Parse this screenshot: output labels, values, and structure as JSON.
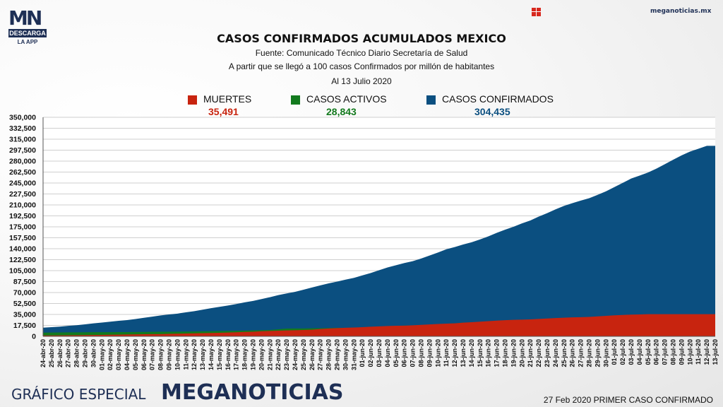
{
  "header": {
    "logo_mn": "MN",
    "logo_descarga": "DESCARGA",
    "logo_app": "LA APP",
    "site": "meganoticias.mx"
  },
  "footer": {
    "left": "GRÁFICO ESPECIAL",
    "brand": "MEGANOTICIAS",
    "right": "27 Feb 2020 PRIMER CASO CONFIRMADO"
  },
  "colors": {
    "muertes": "#c8240f",
    "activos": "#137a1e",
    "confirmados": "#0b4f80",
    "brand": "#1e2f55"
  },
  "chart_data": {
    "type": "area",
    "title": "CASOS CONFIRMADOS ACUMULADOS MEXICO",
    "subtitle": "Fuente: Comunicado Técnico Diario Secretaría de Salud",
    "subtitle2": "A partir que se llegó a 100 casos Confirmados por millón de habitantes",
    "date_note": "Al 13 Julio 2020",
    "ylim": [
      0,
      350000
    ],
    "y_ticks": [
      "350,000",
      "332,500",
      "315,000",
      "297,500",
      "280,000",
      "262,500",
      "245,000",
      "227,500",
      "210,000",
      "192,500",
      "175,000",
      "157,500",
      "140,000",
      "122,500",
      "105,000",
      "87,500",
      "70,000",
      "52,500",
      "35,000",
      "17,500",
      "0"
    ],
    "grid": true,
    "x": [
      "24-abr-20",
      "25-abr-20",
      "26-abr-20",
      "27-abr-20",
      "28-abr-20",
      "29-abr-20",
      "30-abr-20",
      "01-may-20",
      "02-may-20",
      "03-may-20",
      "04-may-20",
      "05-may-20",
      "06-may-20",
      "07-may-20",
      "08-may-20",
      "09-may-20",
      "10-may-20",
      "11-may-20",
      "12-may-20",
      "13-may-20",
      "14-may-20",
      "15-may-20",
      "16-may-20",
      "17-may-20",
      "18-may-20",
      "19-may-20",
      "20-may-20",
      "21-may-20",
      "22-may-20",
      "23-may-20",
      "24-may-20",
      "25-may-20",
      "26-may-20",
      "27-may-20",
      "28-may-20",
      "29-may-20",
      "30-may-20",
      "31-may-20",
      "01-jun-20",
      "02-jun-20",
      "03-jun-20",
      "04-jun-20",
      "05-jun-20",
      "06-jun-20",
      "07-jun-20",
      "08-jun-20",
      "09-jun-20",
      "10-jun-20",
      "11-jun-20",
      "12-jun-20",
      "13-jun-20",
      "14-jun-20",
      "15-jun-20",
      "16-jun-20",
      "17-jun-20",
      "18-jun-20",
      "19-jun-20",
      "20-jun-20",
      "21-jun-20",
      "22-jun-20",
      "23-jun-20",
      "24-jun-20",
      "25-jun-20",
      "26-jun-20",
      "27-jun-20",
      "28-jun-20",
      "29-jun-20",
      "30-jun-20",
      "01-jul-20",
      "02-jul-20",
      "03-jul-20",
      "04-jul-20",
      "05-jul-20",
      "06-jul-20",
      "07-jul-20",
      "08-jul-20",
      "09-jul-20",
      "10-jul-20",
      "11-jul-20",
      "12-jul-20",
      "13-jul-20"
    ],
    "series": [
      {
        "name": "CASOS CONFIRMADOS",
        "label": "304,435",
        "color": "#0b4f80",
        "values": [
          13842,
          14677,
          15529,
          16752,
          17799,
          19224,
          20739,
          22088,
          23471,
          24905,
          26025,
          27634,
          29616,
          31522,
          33460,
          35022,
          36327,
          38324,
          40186,
          42595,
          45032,
          47144,
          49219,
          51633,
          54346,
          56594,
          59567,
          62527,
          65856,
          68620,
          71105,
          74560,
          78023,
          81400,
          84627,
          87512,
          90664,
          93435,
          97326,
          101238,
          105680,
          110026,
          113619,
          117103,
          120102,
          124301,
          129184,
          133974,
          139196,
          142690,
          146837,
          150264,
          154863,
          159793,
          165455,
          170485,
          175202,
          180545,
          185122,
          191410,
          196847,
          202951,
          208392,
          212802,
          216852,
          220657,
          226089,
          231770,
          238511,
          245251,
          252165,
          256848,
          261750,
          268008,
          275003,
          282283,
          289174,
          295268,
          299750,
          304435,
          304435
        ]
      },
      {
        "name": "CASOS ACTIVOS",
        "label": "28,843",
        "color": "#137a1e",
        "values": [
          6000,
          6100,
          6200,
          6300,
          6400,
          6500,
          6600,
          6650,
          6700,
          6750,
          6800,
          6900,
          7000,
          7150,
          7300,
          7400,
          7500,
          7650,
          7800,
          8000,
          8200,
          8400,
          8600,
          8800,
          9100,
          9400,
          9800,
          10200,
          11300,
          12400,
          12500,
          12600,
          12800,
          13000,
          13300,
          13600,
          13600,
          13700,
          13900,
          14200,
          14700,
          15200,
          16200,
          17200,
          17000,
          16400,
          17800,
          18700,
          19900,
          20800,
          21900,
          22300,
          19600,
          20500,
          21800,
          22400,
          22900,
          23400,
          23600,
          23800,
          23900,
          24000,
          24200,
          24300,
          24600,
          24900,
          25100,
          25300,
          25600,
          25900,
          26200,
          26500,
          26800,
          27100,
          27400,
          27600,
          27900,
          28200,
          28400,
          28700,
          28843
        ]
      },
      {
        "name": "MUERTES",
        "label": "35,491",
        "color": "#c8240f",
        "values": [
          1351,
          1434,
          1569,
          1732,
          1859,
          1972,
          2154,
          2271,
          2507,
          2704,
          2961,
          3160,
          3353,
          3465,
          3573,
          3926,
          4220,
          4477,
          4767,
          5045,
          5332,
          5666,
          6090,
          6510,
          6989,
          7394,
          8134,
          8597,
          9044,
          9415,
          9779,
          10167,
          10637,
          11729,
          12545,
          13170,
          13699,
          14053,
          14649,
          15357,
          15944,
          16448,
          16872,
          17141,
          17580,
          18310,
          19080,
          19747,
          20394,
          20781,
          21825,
          22584,
          23377,
          24324,
          25060,
          25779,
          26381,
          26648,
          27121,
          27769,
          28510,
          29189,
          29843,
          30366,
          30639,
          31119,
          31894,
          32796,
          33526,
          34191,
          34730,
          35006,
          35491,
          35491,
          35491,
          35491,
          35491,
          35491,
          35491,
          35491,
          35491
        ]
      }
    ]
  }
}
